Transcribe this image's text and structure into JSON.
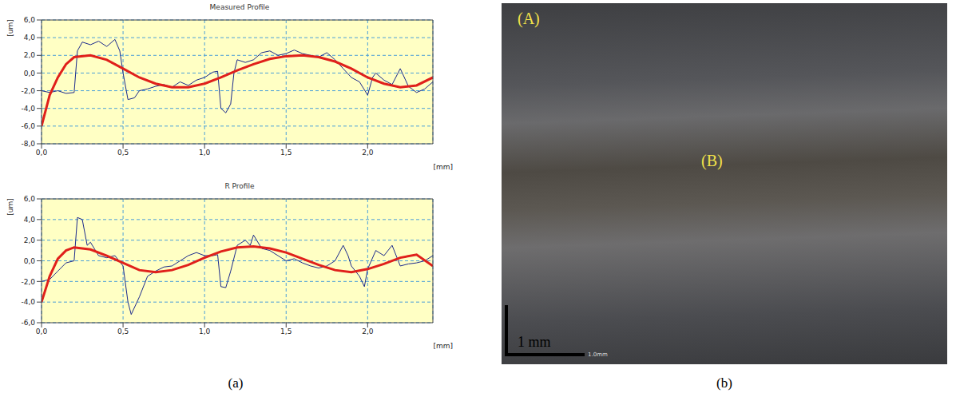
{
  "chart_data": [
    {
      "type": "line",
      "title": "Measured Profile",
      "x_label": "[mm]",
      "y_label": "[um]",
      "xlim": [
        0,
        2.4
      ],
      "ylim": [
        -8,
        6
      ],
      "xticks": [
        {
          "value": 0,
          "label": "0,0"
        },
        {
          "value": 0.5,
          "label": "0,5"
        },
        {
          "value": 1,
          "label": "1,0"
        },
        {
          "value": 1.5,
          "label": "1,5"
        },
        {
          "value": 2,
          "label": "2,0"
        }
      ],
      "yticks": [
        {
          "value": -8,
          "label": "-8,0"
        },
        {
          "value": -6,
          "label": "-6,0"
        },
        {
          "value": -4,
          "label": "-4,0"
        },
        {
          "value": -2,
          "label": "-2,0"
        },
        {
          "value": 0,
          "label": "0,0"
        },
        {
          "value": 2,
          "label": "2,0"
        },
        {
          "value": 4,
          "label": "4,0"
        },
        {
          "value": 6,
          "label": "6,0"
        }
      ],
      "grid": true,
      "series": [
        {
          "color": "#1c2a8c",
          "x": [
            0,
            0.05,
            0.1,
            0.15,
            0.2,
            0.22,
            0.25,
            0.3,
            0.35,
            0.4,
            0.45,
            0.48,
            0.5,
            0.53,
            0.57,
            0.6,
            0.65,
            0.7,
            0.75,
            0.8,
            0.85,
            0.9,
            0.95,
            1.0,
            1.05,
            1.08,
            1.1,
            1.13,
            1.16,
            1.18,
            1.2,
            1.25,
            1.3,
            1.35,
            1.4,
            1.45,
            1.5,
            1.55,
            1.6,
            1.65,
            1.7,
            1.75,
            1.8,
            1.85,
            1.9,
            1.95,
            2.0,
            2.03,
            2.05,
            2.1,
            2.15,
            2.2,
            2.25,
            2.3,
            2.35,
            2.4
          ],
          "values": [
            -2.0,
            -2.2,
            -2.0,
            -2.3,
            -2.2,
            2.5,
            3.5,
            3.2,
            3.6,
            3.0,
            3.8,
            2.5,
            0.0,
            -3.0,
            -2.8,
            -2.0,
            -1.8,
            -1.5,
            -1.3,
            -1.6,
            -1.0,
            -1.4,
            -0.8,
            -0.5,
            0.1,
            0.2,
            -4.0,
            -4.5,
            -3.5,
            0.0,
            1.5,
            1.2,
            1.5,
            2.3,
            2.5,
            2.0,
            2.2,
            2.6,
            2.2,
            2.0,
            1.8,
            2.3,
            1.5,
            0.5,
            -0.5,
            -1.0,
            -2.5,
            -0.5,
            0.0,
            -0.8,
            -1.3,
            0.5,
            -1.5,
            -2.2,
            -1.8,
            -1.0
          ]
        },
        {
          "color": "#e0201b",
          "x": [
            0,
            0.05,
            0.1,
            0.15,
            0.2,
            0.3,
            0.4,
            0.5,
            0.6,
            0.7,
            0.8,
            0.9,
            1.0,
            1.1,
            1.2,
            1.3,
            1.4,
            1.5,
            1.6,
            1.7,
            1.8,
            1.9,
            2.0,
            2.1,
            2.2,
            2.3,
            2.4
          ],
          "values": [
            -6.0,
            -2.5,
            -0.5,
            1.0,
            1.8,
            2.0,
            1.5,
            0.5,
            -0.5,
            -1.2,
            -1.6,
            -1.6,
            -1.2,
            -0.5,
            0.3,
            1.0,
            1.6,
            1.9,
            2.0,
            1.8,
            1.3,
            0.5,
            -0.5,
            -1.2,
            -1.6,
            -1.4,
            -0.5
          ]
        }
      ]
    },
    {
      "type": "line",
      "title": "R Profile",
      "x_label": "[mm]",
      "y_label": "[um]",
      "xlim": [
        0,
        2.4
      ],
      "ylim": [
        -6,
        6
      ],
      "xticks": [
        {
          "value": 0,
          "label": "0,0"
        },
        {
          "value": 0.5,
          "label": "0,5"
        },
        {
          "value": 1,
          "label": "1,0"
        },
        {
          "value": 1.5,
          "label": "1,5"
        },
        {
          "value": 2,
          "label": "2,0"
        }
      ],
      "yticks": [
        {
          "value": -6,
          "label": "-6,0"
        },
        {
          "value": -4,
          "label": "-4,0"
        },
        {
          "value": -2,
          "label": "-2,0"
        },
        {
          "value": 0,
          "label": "0,0"
        },
        {
          "value": 2,
          "label": "2,0"
        },
        {
          "value": 4,
          "label": "4,0"
        },
        {
          "value": 6,
          "label": "6,0"
        }
      ],
      "grid": true,
      "series": [
        {
          "color": "#1c2a8c",
          "x": [
            0,
            0.05,
            0.1,
            0.15,
            0.2,
            0.22,
            0.25,
            0.28,
            0.3,
            0.35,
            0.4,
            0.45,
            0.5,
            0.53,
            0.55,
            0.6,
            0.65,
            0.7,
            0.75,
            0.8,
            0.85,
            0.9,
            0.95,
            1.0,
            1.05,
            1.08,
            1.1,
            1.13,
            1.16,
            1.2,
            1.25,
            1.28,
            1.3,
            1.35,
            1.4,
            1.45,
            1.5,
            1.55,
            1.6,
            1.65,
            1.7,
            1.75,
            1.8,
            1.85,
            1.88,
            1.9,
            1.95,
            1.98,
            2.0,
            2.05,
            2.1,
            2.15,
            2.2,
            2.25,
            2.3,
            2.35,
            2.4
          ],
          "values": [
            -2.0,
            -1.8,
            -1.0,
            -0.2,
            0.0,
            4.2,
            4.0,
            1.5,
            1.8,
            0.5,
            0.3,
            0.5,
            -0.5,
            -4.0,
            -5.2,
            -3.5,
            -1.5,
            -1.0,
            -0.6,
            -0.5,
            0.0,
            0.5,
            0.8,
            0.5,
            0.5,
            0.6,
            -2.5,
            -2.6,
            -1.0,
            1.5,
            2.0,
            1.5,
            2.5,
            1.2,
            1.0,
            0.5,
            0.0,
            0.2,
            -0.2,
            -0.5,
            -0.7,
            -0.5,
            0.0,
            1.5,
            0.5,
            -0.5,
            -1.5,
            -2.5,
            -0.8,
            1.0,
            0.5,
            1.5,
            -0.5,
            -0.3,
            -0.2,
            0.0,
            0.5
          ]
        },
        {
          "color": "#e0201b",
          "x": [
            0,
            0.05,
            0.1,
            0.15,
            0.2,
            0.3,
            0.4,
            0.5,
            0.6,
            0.7,
            0.8,
            0.9,
            1.0,
            1.1,
            1.2,
            1.3,
            1.4,
            1.5,
            1.6,
            1.7,
            1.8,
            1.9,
            2.0,
            2.1,
            2.2,
            2.3,
            2.4
          ],
          "values": [
            -4.0,
            -1.5,
            0.2,
            1.0,
            1.3,
            1.1,
            0.5,
            -0.2,
            -0.9,
            -1.1,
            -0.9,
            -0.4,
            0.3,
            0.9,
            1.3,
            1.4,
            1.2,
            0.8,
            0.2,
            -0.4,
            -0.9,
            -1.1,
            -0.8,
            -0.3,
            0.3,
            0.6,
            -0.5
          ]
        }
      ]
    }
  ],
  "panel_labels": [
    "(a)",
    "(b)"
  ],
  "image": {
    "region_labels": [
      "(A)",
      "(B)"
    ],
    "scale_bar": "1 mm",
    "scale_bar_note": "1.0mm"
  }
}
